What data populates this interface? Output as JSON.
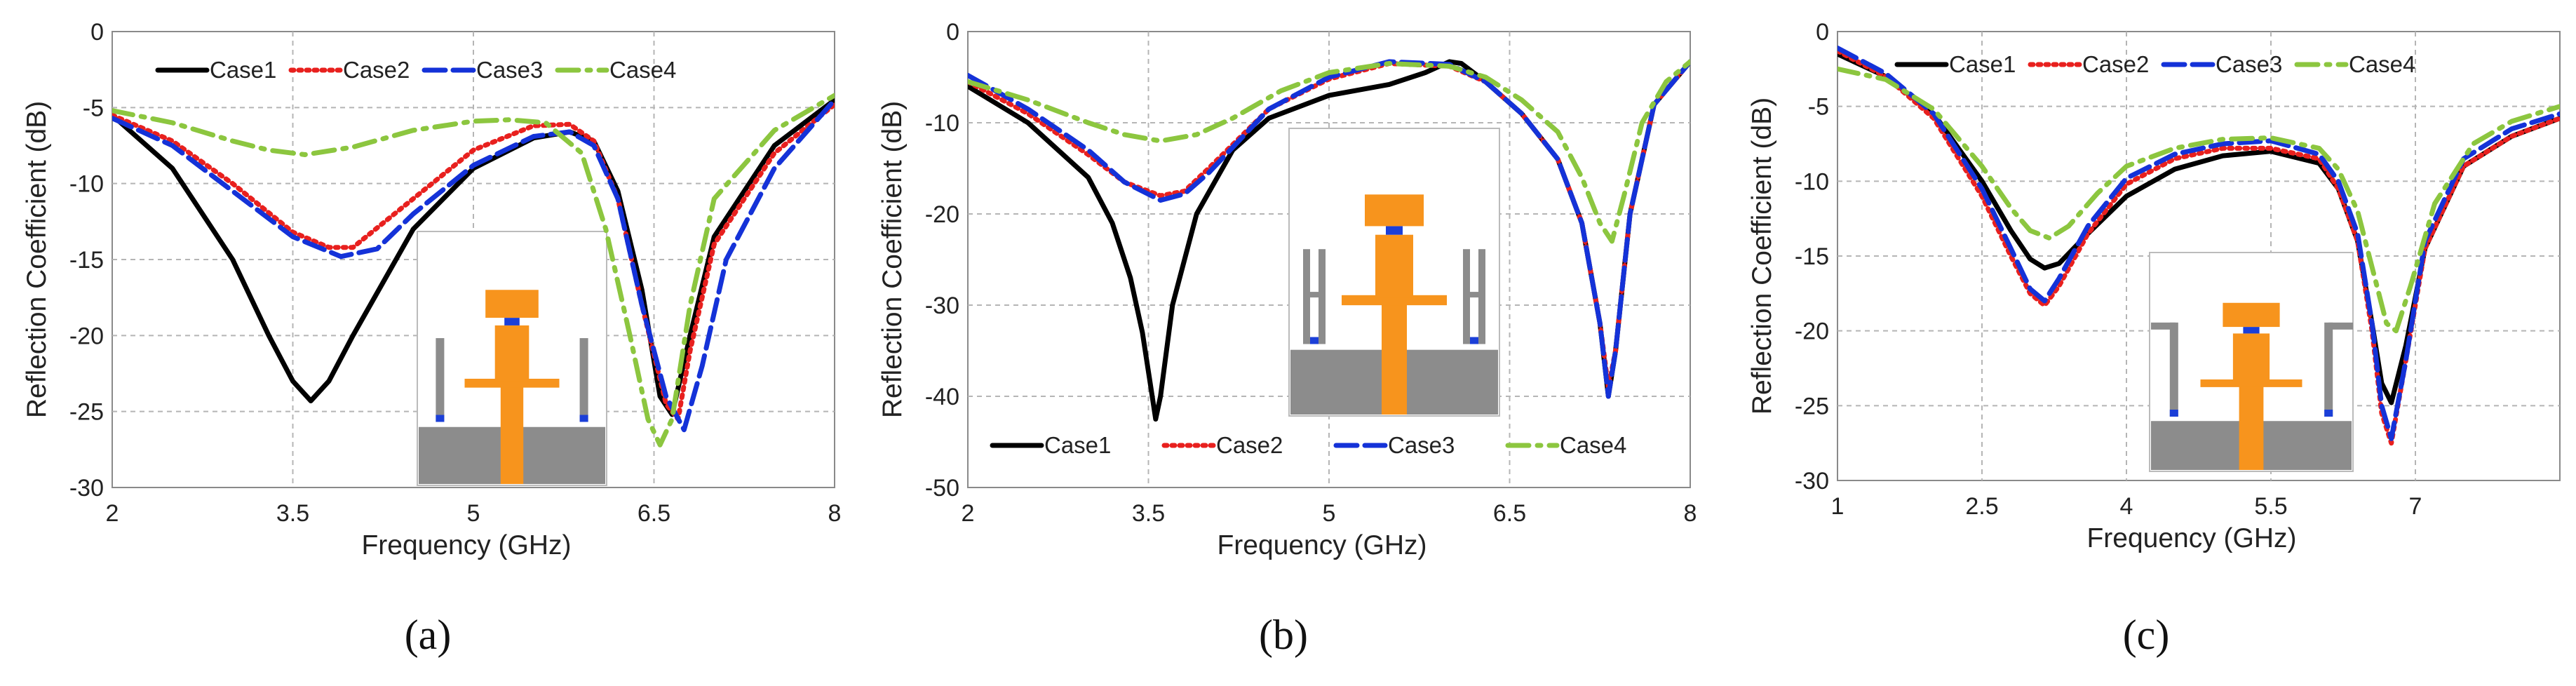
{
  "chart_data": [
    {
      "panel": "(a)",
      "type": "line",
      "xlabel": "Frequency (GHz)",
      "ylabel": "Reflection Coefficient (dB)",
      "xlim": [
        2,
        8
      ],
      "ylim": [
        -30,
        0
      ],
      "xticks": [
        "2",
        "3.5",
        "5",
        "6.5",
        "8"
      ],
      "yticks": [
        "0",
        "-5",
        "-10",
        "-15",
        "-20",
        "-25",
        "-30"
      ],
      "legend": [
        "Case1",
        "Case2",
        "Case3",
        "Case4"
      ],
      "legend_position": "top",
      "inset": "antenna with feed line and two vertical side stubs",
      "series": [
        {
          "name": "Case1",
          "x": [
            2,
            2.5,
            3,
            3.3,
            3.5,
            3.65,
            3.8,
            4,
            4.5,
            5,
            5.5,
            5.8,
            6,
            6.2,
            6.4,
            6.55,
            6.65,
            6.8,
            7,
            7.5,
            8
          ],
          "y": [
            -5.5,
            -9,
            -15,
            -20,
            -23,
            -24.3,
            -23,
            -20,
            -13,
            -9,
            -7,
            -6.6,
            -7.2,
            -10.5,
            -17,
            -24,
            -25.2,
            -20,
            -13.5,
            -7.5,
            -4.5
          ]
        },
        {
          "name": "Case2",
          "x": [
            2,
            2.5,
            3,
            3.5,
            3.8,
            4,
            4.5,
            5,
            5.5,
            5.8,
            6,
            6.2,
            6.4,
            6.6,
            6.7,
            6.8,
            7,
            7.5,
            8
          ],
          "y": [
            -5.5,
            -7.2,
            -10,
            -13.2,
            -14.2,
            -14.2,
            -11,
            -7.8,
            -6.2,
            -6.1,
            -7.2,
            -11,
            -18,
            -24.5,
            -25.5,
            -21,
            -14,
            -8,
            -4.8
          ]
        },
        {
          "name": "Case3",
          "x": [
            2,
            2.5,
            3,
            3.5,
            3.9,
            4.2,
            4.5,
            5,
            5.5,
            5.8,
            6,
            6.2,
            6.4,
            6.6,
            6.75,
            6.9,
            7.1,
            7.5,
            8
          ],
          "y": [
            -5.7,
            -7.5,
            -10.5,
            -13.5,
            -14.8,
            -14.3,
            -12,
            -8.8,
            -6.9,
            -6.6,
            -7.5,
            -11,
            -18,
            -24,
            -26.2,
            -22,
            -15,
            -9,
            -4.5
          ]
        },
        {
          "name": "Case4",
          "x": [
            2,
            2.5,
            3,
            3.3,
            3.6,
            4,
            4.5,
            5,
            5.3,
            5.6,
            5.9,
            6.1,
            6.3,
            6.45,
            6.55,
            6.65,
            6.8,
            7,
            7.5,
            8
          ],
          "y": [
            -5.2,
            -6,
            -7.2,
            -7.8,
            -8.1,
            -7.6,
            -6.5,
            -5.9,
            -5.8,
            -6,
            -8,
            -13,
            -20,
            -25.5,
            -27.2,
            -25.5,
            -18,
            -11,
            -6.5,
            -4.2
          ]
        }
      ]
    },
    {
      "panel": "(b)",
      "type": "line",
      "xlabel": "Frequency (GHz)",
      "ylabel": "Reflection Coefficient (dB)",
      "xlim": [
        2,
        8
      ],
      "ylim": [
        -50,
        0
      ],
      "xticks": [
        "2",
        "3.5",
        "5",
        "6.5",
        "8"
      ],
      "yticks": [
        "0",
        "-10",
        "-20",
        "-30",
        "-40",
        "-50"
      ],
      "legend": [
        "Case1",
        "Case2",
        "Case3",
        "Case4"
      ],
      "legend_position": "bottom",
      "inset": "antenna with feed line and two H-shaped side stubs",
      "series": [
        {
          "name": "Case1",
          "x": [
            2,
            2.5,
            3,
            3.2,
            3.35,
            3.45,
            3.52,
            3.56,
            3.6,
            3.7,
            3.9,
            4.2,
            4.5,
            5,
            5.5,
            5.8,
            6,
            6.1,
            6.3,
            6.6,
            6.9,
            7.1,
            7.25,
            7.32,
            7.38,
            7.5,
            7.7,
            8
          ],
          "y": [
            -6,
            -10,
            -16,
            -21,
            -27,
            -33,
            -39,
            -42.5,
            -40,
            -30,
            -20,
            -13,
            -9.5,
            -7,
            -5.8,
            -4.5,
            -3.3,
            -3.5,
            -5.5,
            -9,
            -14,
            -21,
            -32,
            -40,
            -35,
            -20,
            -8,
            -3.3
          ]
        },
        {
          "name": "Case2",
          "x": [
            2,
            2.5,
            3,
            3.3,
            3.6,
            3.8,
            4,
            4.5,
            5,
            5.5,
            6,
            6.3,
            6.6,
            6.9,
            7.1,
            7.25,
            7.32,
            7.38,
            7.5,
            7.7,
            8
          ],
          "y": [
            -5.5,
            -9,
            -13.5,
            -16.5,
            -18,
            -17.5,
            -15,
            -8.5,
            -5.2,
            -3.5,
            -3.8,
            -5.5,
            -9,
            -14,
            -21,
            -32,
            -39,
            -35,
            -20,
            -8,
            -3.3
          ]
        },
        {
          "name": "Case3",
          "x": [
            2,
            2.5,
            3,
            3.3,
            3.6,
            3.8,
            4,
            4.5,
            5,
            5.5,
            6,
            6.3,
            6.6,
            6.9,
            7.1,
            7.25,
            7.32,
            7.38,
            7.5,
            7.7,
            8
          ],
          "y": [
            -4.8,
            -8.5,
            -13,
            -16.5,
            -18.5,
            -17.8,
            -15.5,
            -8.5,
            -5,
            -3.3,
            -3.6,
            -5.5,
            -9,
            -14,
            -21,
            -32,
            -40,
            -35,
            -20,
            -8,
            -3.3
          ]
        },
        {
          "name": "Case4",
          "x": [
            2,
            2.5,
            3,
            3.3,
            3.6,
            3.9,
            4.2,
            4.6,
            5,
            5.5,
            6,
            6.3,
            6.6,
            6.9,
            7.1,
            7.25,
            7.35,
            7.45,
            7.6,
            7.8,
            8
          ],
          "y": [
            -5.5,
            -7.5,
            -10,
            -11.3,
            -12,
            -11.3,
            -9.5,
            -6.5,
            -4.5,
            -3.5,
            -3.8,
            -5,
            -7.5,
            -11,
            -16,
            -21,
            -23,
            -18,
            -10,
            -5.5,
            -3.3
          ]
        }
      ]
    },
    {
      "panel": "(c)",
      "type": "line",
      "xlabel": "Frequency (GHz)",
      "ylabel": "Reflection Coefficient (dB)",
      "xlim": [
        1,
        8.5
      ],
      "ylim": [
        -30,
        0
      ],
      "xticks": [
        "1",
        "2.5",
        "4",
        "5.5",
        "7"
      ],
      "yticks": [
        "0",
        "-5",
        "-10",
        "-15",
        "-20",
        "-25",
        "-30"
      ],
      "legend": [
        "Case1",
        "Case2",
        "Case3",
        "Case4"
      ],
      "legend_position": "top",
      "inset": "antenna with feed line and two inverted-L side stubs",
      "series": [
        {
          "name": "Case1",
          "x": [
            1,
            1.5,
            2,
            2.5,
            2.8,
            3.0,
            3.15,
            3.3,
            3.6,
            4,
            4.5,
            5,
            5.5,
            6,
            6.2,
            6.4,
            6.55,
            6.65,
            6.75,
            6.9,
            7.1,
            7.5,
            8,
            8.5
          ],
          "y": [
            -1.5,
            -3,
            -5.5,
            -10,
            -13.3,
            -15.2,
            -15.8,
            -15.5,
            -13.5,
            -11,
            -9.2,
            -8.3,
            -8,
            -8.8,
            -10.5,
            -14,
            -19.5,
            -23.5,
            -24.8,
            -21,
            -14.5,
            -9,
            -7,
            -5.8
          ]
        },
        {
          "name": "Case2",
          "x": [
            1,
            1.5,
            2,
            2.5,
            2.8,
            3.0,
            3.15,
            3.3,
            3.6,
            4,
            4.5,
            5,
            5.5,
            6,
            6.2,
            6.4,
            6.55,
            6.65,
            6.75,
            6.9,
            7.1,
            7.5,
            8,
            8.5
          ],
          "y": [
            -1.3,
            -3,
            -5.8,
            -11,
            -15,
            -17.5,
            -18.3,
            -17,
            -13.5,
            -10.2,
            -8.5,
            -7.8,
            -7.8,
            -8.5,
            -10.5,
            -14,
            -20,
            -25.5,
            -27.5,
            -22,
            -14.5,
            -9,
            -7,
            -5.8
          ]
        },
        {
          "name": "Case3",
          "x": [
            1,
            1.5,
            2,
            2.5,
            2.8,
            3.0,
            3.15,
            3.3,
            3.6,
            4,
            4.5,
            5,
            5.5,
            6,
            6.2,
            6.4,
            6.55,
            6.65,
            6.75,
            6.9,
            7.1,
            7.5,
            8,
            8.5
          ],
          "y": [
            -1.1,
            -2.8,
            -5.5,
            -10.5,
            -14.5,
            -17.2,
            -18,
            -16.5,
            -13,
            -9.8,
            -8.2,
            -7.5,
            -7.3,
            -8.2,
            -10,
            -13.5,
            -19.5,
            -25,
            -27.2,
            -22,
            -14,
            -8.5,
            -6.5,
            -5.5
          ]
        },
        {
          "name": "Case4",
          "x": [
            1,
            1.5,
            2,
            2.5,
            2.8,
            3.0,
            3.2,
            3.4,
            3.7,
            4,
            4.5,
            5,
            5.5,
            6,
            6.2,
            6.4,
            6.6,
            6.7,
            6.8,
            6.95,
            7.2,
            7.6,
            8,
            8.5
          ],
          "y": [
            -2.5,
            -3.2,
            -5.2,
            -9,
            -11.8,
            -13.3,
            -13.8,
            -13,
            -10.8,
            -9,
            -7.8,
            -7.2,
            -7.1,
            -7.8,
            -9.2,
            -12,
            -17,
            -19.5,
            -20,
            -17,
            -11.5,
            -7.5,
            -6,
            -5
          ]
        }
      ]
    }
  ]
}
